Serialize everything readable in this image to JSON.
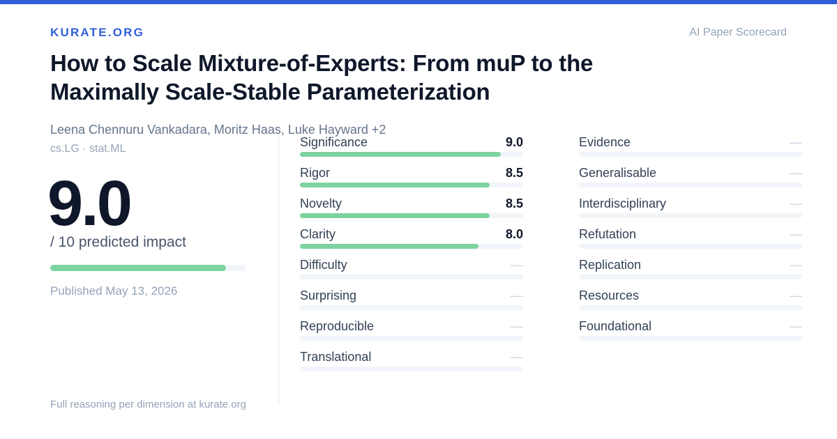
{
  "header": {
    "brand": "KURATE.ORG",
    "scorecard_label": "AI Paper Scorecard"
  },
  "paper": {
    "title": "How to Scale Mixture-of-Experts: From muP to the Maximally Scale-Stable Parameterization",
    "authors": "Leena Chennuru Vankadara, Moritz Haas, Luke Hayward +2",
    "categories": "cs.LG · stat.ML",
    "published": "Published May 13, 2026"
  },
  "impact": {
    "score": "9.0",
    "subtitle": "/ 10 predicted impact",
    "fraction": 0.9
  },
  "colors": {
    "accent": "#2f5fd8",
    "bar_fill": "#7dd3a0",
    "bar_track": "#f1f5f9"
  },
  "dimensions_left": [
    {
      "label": "Significance",
      "value": "9.0",
      "fraction": 0.9
    },
    {
      "label": "Rigor",
      "value": "8.5",
      "fraction": 0.85
    },
    {
      "label": "Novelty",
      "value": "8.5",
      "fraction": 0.85
    },
    {
      "label": "Clarity",
      "value": "8.0",
      "fraction": 0.8
    },
    {
      "label": "Difficulty",
      "value": "—",
      "fraction": 0
    },
    {
      "label": "Surprising",
      "value": "—",
      "fraction": 0
    },
    {
      "label": "Reproducible",
      "value": "—",
      "fraction": 0
    },
    {
      "label": "Translational",
      "value": "—",
      "fraction": 0
    }
  ],
  "dimensions_right": [
    {
      "label": "Evidence",
      "value": "—",
      "fraction": 0
    },
    {
      "label": "Generalisable",
      "value": "—",
      "fraction": 0
    },
    {
      "label": "Interdisciplinary",
      "value": "—",
      "fraction": 0
    },
    {
      "label": "Refutation",
      "value": "—",
      "fraction": 0
    },
    {
      "label": "Replication",
      "value": "—",
      "fraction": 0
    },
    {
      "label": "Resources",
      "value": "—",
      "fraction": 0
    },
    {
      "label": "Foundational",
      "value": "—",
      "fraction": 0
    }
  ],
  "footer": {
    "text": "Full reasoning per dimension at kurate.org"
  }
}
